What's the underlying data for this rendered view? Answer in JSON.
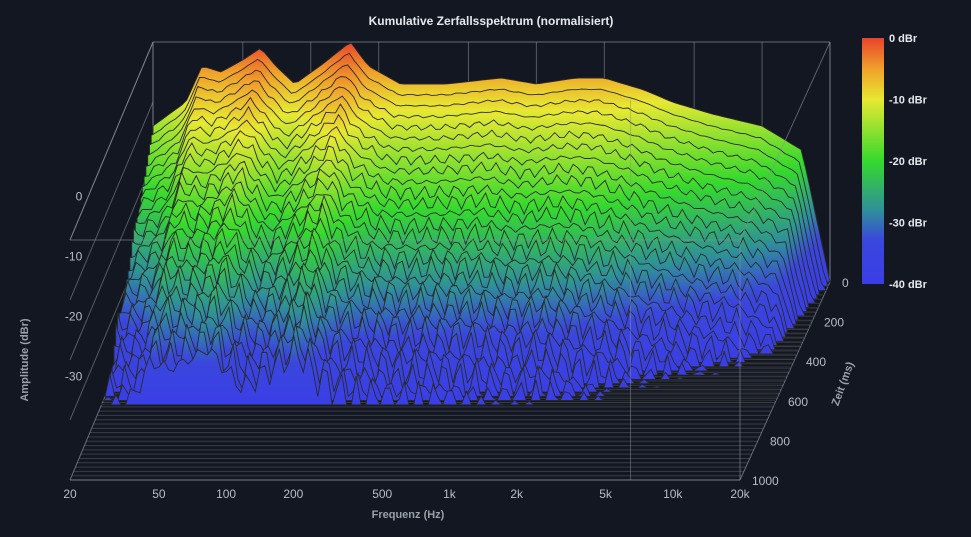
{
  "chart_data": {
    "type": "waterfall-3d",
    "title": "Kumulative Zerfallsspektrum (normalisiert)",
    "xlabel": "Frequenz (Hz)",
    "ylabel": "Amplitude (dBr)",
    "zlabel": "Zeit (ms)",
    "x_scale": "log",
    "xlim": [
      20,
      20000
    ],
    "x_ticks": [
      {
        "value": 20,
        "label": "20"
      },
      {
        "value": 50,
        "label": "50"
      },
      {
        "value": 100,
        "label": "100"
      },
      {
        "value": 200,
        "label": "200"
      },
      {
        "value": 500,
        "label": "500"
      },
      {
        "value": 1000,
        "label": "1k"
      },
      {
        "value": 2000,
        "label": "2k"
      },
      {
        "value": 5000,
        "label": "5k"
      },
      {
        "value": 10000,
        "label": "10k"
      },
      {
        "value": 20000,
        "label": "20k"
      }
    ],
    "ylim": [
      -40,
      0
    ],
    "y_ticks": [
      {
        "value": 0,
        "label": "0"
      },
      {
        "value": -10,
        "label": "-10"
      },
      {
        "value": -20,
        "label": "-20"
      },
      {
        "value": -30,
        "label": "-30"
      }
    ],
    "zlim": [
      0,
      1000
    ],
    "z_ticks": [
      {
        "value": 0,
        "label": "0"
      },
      {
        "value": 200,
        "label": "200"
      },
      {
        "value": 400,
        "label": "400"
      },
      {
        "value": 600,
        "label": "600"
      },
      {
        "value": 800,
        "label": "800"
      },
      {
        "value": 1000,
        "label": "1000"
      }
    ],
    "colorbar": {
      "ticks": [
        {
          "value": 0,
          "label": "0 dBr"
        },
        {
          "value": -10,
          "label": "-10 dBr"
        },
        {
          "value": -20,
          "label": "-20 dBr"
        },
        {
          "value": -30,
          "label": "-30 dBr"
        },
        {
          "value": -40,
          "label": "-40 dBr"
        }
      ],
      "stops": [
        {
          "value": 0,
          "color": "#e8432c"
        },
        {
          "value": -5,
          "color": "#f0a02a"
        },
        {
          "value": -10,
          "color": "#e7e832"
        },
        {
          "value": -20,
          "color": "#35d92d"
        },
        {
          "value": -28,
          "color": "#2f8f9a"
        },
        {
          "value": -33,
          "color": "#3a46dd"
        },
        {
          "value": -40,
          "color": "#3a3ee6"
        }
      ]
    },
    "base_spectrum": [
      {
        "f": 20,
        "db": -14
      },
      {
        "f": 28,
        "db": -10
      },
      {
        "f": 33,
        "db": -4
      },
      {
        "f": 40,
        "db": -5
      },
      {
        "f": 50,
        "db": -3
      },
      {
        "f": 60,
        "db": -1
      },
      {
        "f": 70,
        "db": -4
      },
      {
        "f": 85,
        "db": -7
      },
      {
        "f": 110,
        "db": -4
      },
      {
        "f": 150,
        "db": 0
      },
      {
        "f": 180,
        "db": -4
      },
      {
        "f": 250,
        "db": -7
      },
      {
        "f": 400,
        "db": -7
      },
      {
        "f": 700,
        "db": -6
      },
      {
        "f": 1000,
        "db": -7
      },
      {
        "f": 1500,
        "db": -6
      },
      {
        "f": 2000,
        "db": -6
      },
      {
        "f": 3000,
        "db": -8
      },
      {
        "f": 4000,
        "db": -10
      },
      {
        "f": 6000,
        "db": -12
      },
      {
        "f": 10000,
        "db": -14
      },
      {
        "f": 15000,
        "db": -18
      },
      {
        "f": 20000,
        "db": -40
      }
    ],
    "slice_count": 30,
    "colors": {
      "background": "#131722",
      "grid": "#8a8f98",
      "slice_line": "#2a2a2a",
      "text": "#b8bcc4",
      "title": "#e6e8ec"
    }
  }
}
